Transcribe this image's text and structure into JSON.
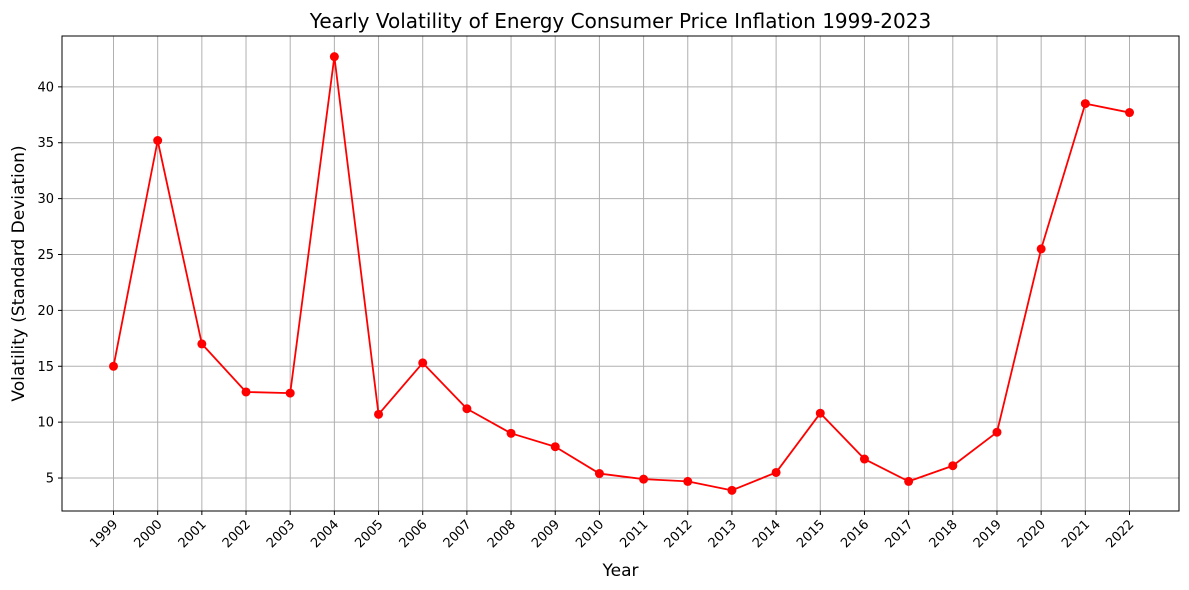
{
  "chart_data": {
    "type": "line",
    "title": "Yearly Volatility of Energy Consumer Price Inflation 1999-2023",
    "xlabel": "Year",
    "ylabel": "Volatility (Standard Deviation)",
    "x": [
      "1999",
      "2000",
      "2001",
      "2002",
      "2003",
      "2004",
      "2005",
      "2006",
      "2007",
      "2008",
      "2009",
      "2010",
      "2011",
      "2012",
      "2013",
      "2014",
      "2015",
      "2016",
      "2017",
      "2018",
      "2019",
      "2020",
      "2021",
      "2022"
    ],
    "series": [
      {
        "values": [
          15.0,
          35.2,
          17.0,
          12.7,
          12.6,
          42.7,
          10.7,
          15.3,
          11.2,
          9.0,
          7.8,
          5.4,
          4.9,
          4.7,
          3.9,
          5.5,
          10.8,
          6.7,
          4.7,
          6.1,
          9.1,
          25.5,
          38.5,
          37.7
        ],
        "color": "#ff0000",
        "marker": "circle"
      }
    ],
    "yticks": [
      5,
      10,
      15,
      20,
      25,
      30,
      35,
      40
    ],
    "ylim": [
      2.05,
      44.55
    ],
    "grid": true,
    "x_tick_rotation": -45
  }
}
